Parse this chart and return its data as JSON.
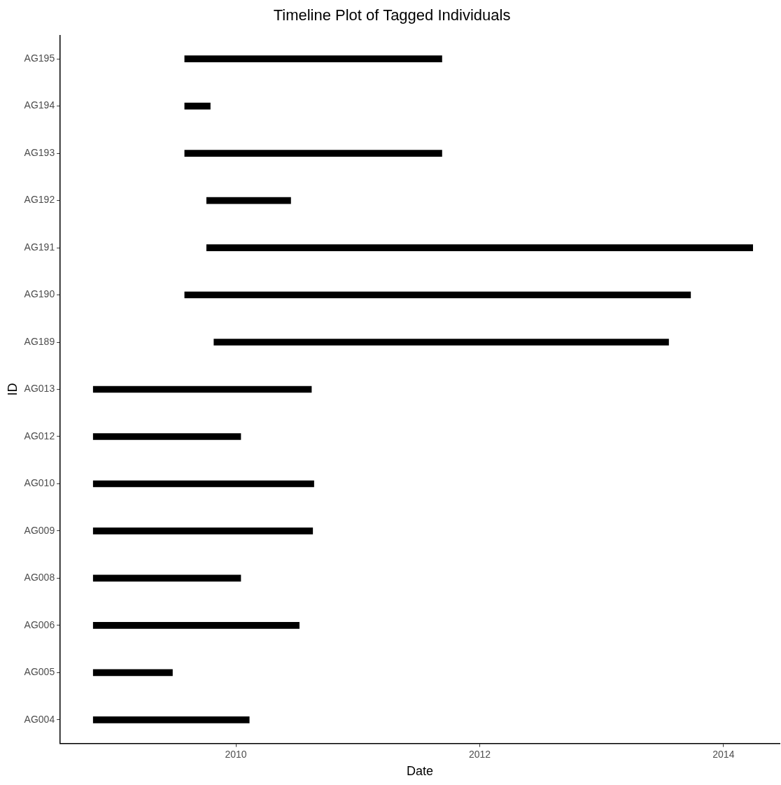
{
  "chart_data": {
    "type": "bar",
    "orientation": "horizontal",
    "title": "Timeline Plot of Tagged Individuals",
    "xlabel": "Date",
    "ylabel": "ID",
    "categories": [
      "AG195",
      "AG194",
      "AG193",
      "AG192",
      "AG191",
      "AG190",
      "AG189",
      "AG013",
      "AG012",
      "AG010",
      "AG009",
      "AG008",
      "AG006",
      "AG005",
      "AG004"
    ],
    "base": [
      2009.58,
      2009.58,
      2009.58,
      2009.76,
      2009.76,
      2009.58,
      2009.82,
      2008.83,
      2008.83,
      2008.83,
      2008.83,
      2008.83,
      2008.83,
      2008.83,
      2008.83
    ],
    "values": [
      2.11,
      0.21,
      2.11,
      0.69,
      4.48,
      4.15,
      3.73,
      1.79,
      1.21,
      1.81,
      1.8,
      1.21,
      1.69,
      0.65,
      1.28
    ],
    "color": "#000000",
    "xlim": [
      2008.56,
      2014.46
    ],
    "xticks": [
      2010,
      2012,
      2014
    ],
    "grid": false
  }
}
